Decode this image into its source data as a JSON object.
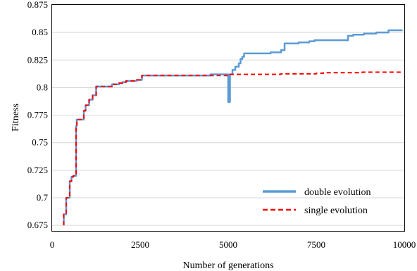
{
  "chart_data": {
    "type": "line",
    "title": "",
    "xlabel": "Number of generations",
    "ylabel": "Fitness",
    "xlim": [
      0,
      10000
    ],
    "ylim": [
      0.67,
      0.875
    ],
    "x_ticks": [
      0,
      2500,
      5000,
      7500,
      10000
    ],
    "x_tick_labels": [
      "0",
      "2500",
      "5000",
      "7500",
      "10000"
    ],
    "y_ticks": [
      0.675,
      0.7,
      0.725,
      0.75,
      0.775,
      0.8,
      0.825,
      0.85,
      0.875
    ],
    "y_tick_labels": [
      "0.675",
      "0.7",
      "0.725",
      "0.75",
      "0.775",
      "0.8",
      "0.825",
      "0.85",
      "0.875"
    ],
    "grid": "horizontal",
    "legend_position": "bottom-right",
    "series": [
      {
        "name": "double evolution",
        "color": "#5b9bd5",
        "style": "solid",
        "x": [
          330,
          330,
          400,
          400,
          500,
          500,
          550,
          550,
          600,
          600,
          680,
          680,
          700,
          700,
          720,
          720,
          780,
          780,
          900,
          900,
          950,
          950,
          1050,
          1050,
          1150,
          1150,
          1250,
          1250,
          1700,
          1700,
          1900,
          1900,
          2000,
          2000,
          2100,
          2100,
          2400,
          2400,
          2550,
          2550,
          3500,
          3500,
          4500,
          4500,
          5000,
          5000,
          5050,
          5050,
          5120,
          5120,
          5200,
          5200,
          5300,
          5300,
          5350,
          5350,
          5400,
          5400,
          5450,
          5450,
          6200,
          6200,
          6500,
          6500,
          6600,
          6600,
          7000,
          7000,
          7300,
          7300,
          7450,
          7450,
          8400,
          8400,
          8550,
          8550,
          8850,
          8850,
          9200,
          9200,
          9550,
          9550,
          9950
        ],
        "y": [
          0.675,
          0.685,
          0.685,
          0.7,
          0.7,
          0.715,
          0.715,
          0.719,
          0.719,
          0.72,
          0.72,
          0.765,
          0.765,
          0.771,
          0.771,
          0.771,
          0.771,
          0.771,
          0.771,
          0.779,
          0.779,
          0.784,
          0.784,
          0.789,
          0.789,
          0.793,
          0.793,
          0.801,
          0.801,
          0.803,
          0.803,
          0.804,
          0.804,
          0.805,
          0.805,
          0.806,
          0.806,
          0.807,
          0.807,
          0.811,
          0.811,
          0.811,
          0.811,
          0.812,
          0.812,
          0.787,
          0.787,
          0.812,
          0.812,
          0.816,
          0.816,
          0.819,
          0.819,
          0.822,
          0.822,
          0.826,
          0.826,
          0.828,
          0.828,
          0.831,
          0.831,
          0.832,
          0.832,
          0.834,
          0.834,
          0.84,
          0.84,
          0.841,
          0.841,
          0.842,
          0.842,
          0.843,
          0.843,
          0.847,
          0.847,
          0.848,
          0.848,
          0.849,
          0.849,
          0.85,
          0.85,
          0.852,
          0.852
        ]
      },
      {
        "name": "single evolution",
        "color": "#ff0000",
        "style": "dashed",
        "x": [
          330,
          330,
          400,
          400,
          500,
          500,
          550,
          550,
          600,
          600,
          680,
          680,
          700,
          700,
          900,
          900,
          950,
          950,
          1050,
          1050,
          1150,
          1150,
          1250,
          1250,
          1700,
          1700,
          1900,
          1900,
          2000,
          2000,
          2100,
          2100,
          2400,
          2400,
          2550,
          2550,
          3500,
          3500,
          5050,
          5050,
          5500,
          5500,
          6500,
          6500,
          7500,
          7500,
          7700,
          7700,
          8800,
          8800,
          9950
        ],
        "y": [
          0.675,
          0.685,
          0.685,
          0.7,
          0.7,
          0.715,
          0.715,
          0.719,
          0.719,
          0.72,
          0.72,
          0.765,
          0.765,
          0.771,
          0.771,
          0.779,
          0.779,
          0.784,
          0.784,
          0.789,
          0.789,
          0.793,
          0.793,
          0.801,
          0.801,
          0.803,
          0.803,
          0.804,
          0.804,
          0.805,
          0.805,
          0.806,
          0.806,
          0.807,
          0.807,
          0.811,
          0.811,
          0.811,
          0.811,
          0.812,
          0.812,
          0.812,
          0.812,
          0.8125,
          0.8125,
          0.813,
          0.813,
          0.8135,
          0.8135,
          0.814,
          0.814
        ]
      }
    ]
  }
}
